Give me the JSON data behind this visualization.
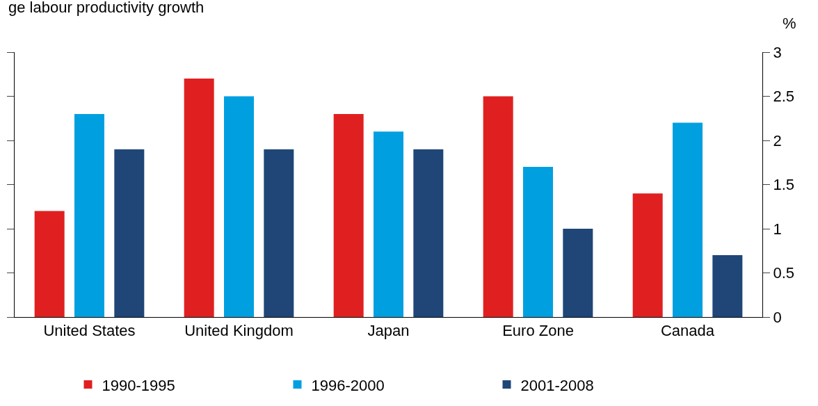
{
  "chart_data": {
    "type": "bar",
    "title": "ge labour productivity growth",
    "ylabel": "%",
    "categories": [
      "United States",
      "United Kingdom",
      "Japan",
      "Euro Zone",
      "Canada"
    ],
    "series": [
      {
        "name": "1990-1995",
        "color": "#e02020",
        "values": [
          1.2,
          2.7,
          2.3,
          2.5,
          1.4
        ]
      },
      {
        "name": "1996-2000",
        "color": "#00a0e0",
        "values": [
          2.3,
          2.5,
          2.1,
          1.7,
          2.2
        ]
      },
      {
        "name": "2001-2008",
        "color": "#1f4677",
        "values": [
          1.9,
          1.9,
          1.9,
          1.0,
          0.7
        ]
      }
    ],
    "ylim": [
      0,
      3
    ],
    "yticks": [
      0,
      0.5,
      1,
      1.5,
      2,
      2.5,
      3
    ],
    "legend": "bottom"
  }
}
